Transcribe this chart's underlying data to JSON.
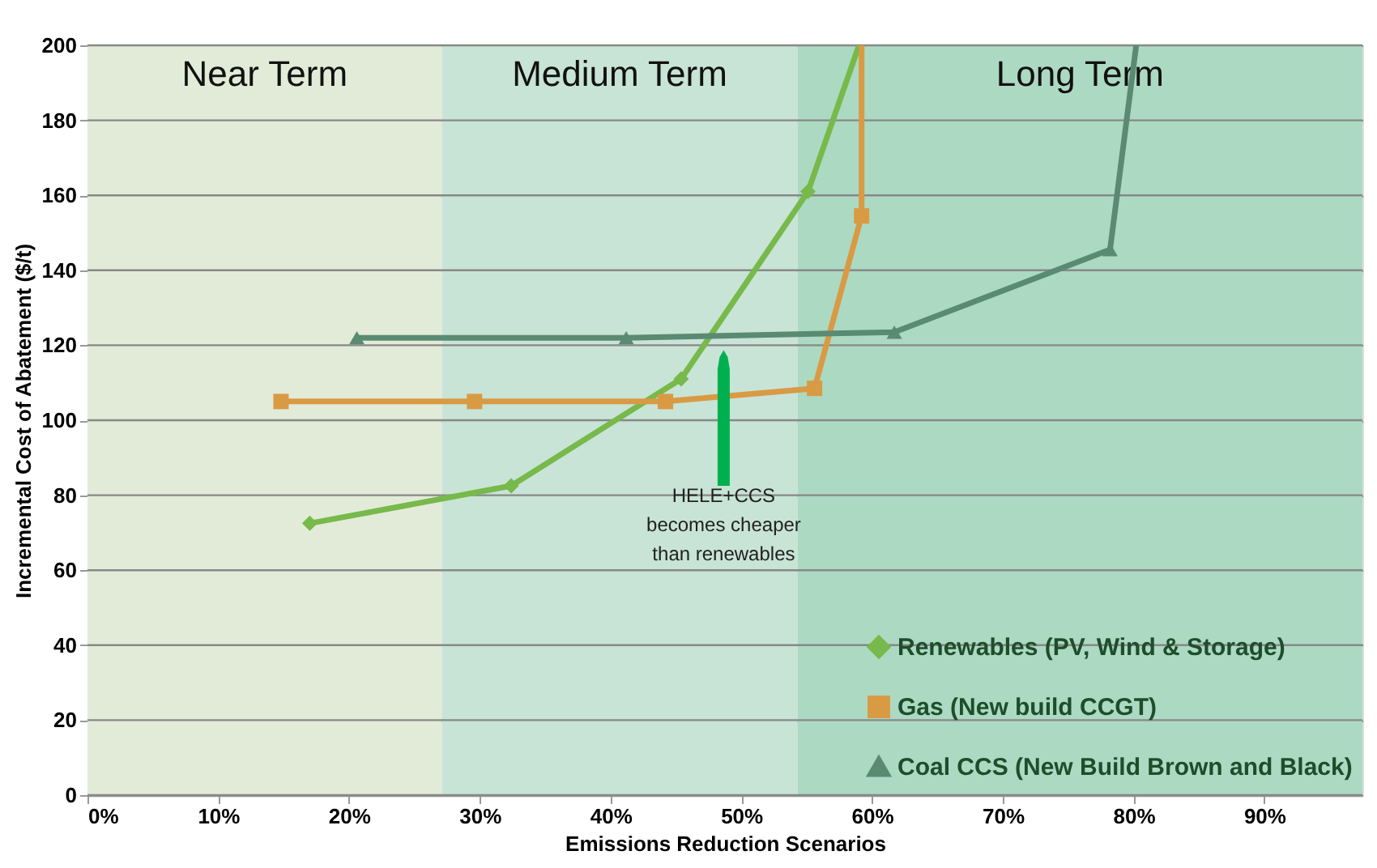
{
  "chart_data": {
    "type": "line",
    "xlabel": "Emissions Reduction Scenarios",
    "ylabel": "Incremental Cost of Abatement ($/t)",
    "xlim": [
      0,
      97.5
    ],
    "xticks": [
      {
        "value": 0,
        "label": "0%"
      },
      {
        "value": 10,
        "label": "10%"
      },
      {
        "value": 20,
        "label": "20%"
      },
      {
        "value": 30,
        "label": "30%"
      },
      {
        "value": 40,
        "label": "40%"
      },
      {
        "value": 50,
        "label": "50%"
      },
      {
        "value": 60,
        "label": "60%"
      },
      {
        "value": 70,
        "label": "70%"
      },
      {
        "value": 80,
        "label": "80%"
      },
      {
        "value": 90,
        "label": "90%"
      }
    ],
    "ylim": [
      0,
      200
    ],
    "yticks": [
      0,
      20,
      40,
      60,
      80,
      100,
      120,
      140,
      160,
      180,
      200
    ],
    "grid": "y",
    "legend": "bottom right",
    "series": [
      {
        "name": "Renewables (PV, Wind & Storage)",
        "color": "#77b94a",
        "marker": "diamond",
        "x": [
          17.0,
          32.4,
          45.4,
          55.1,
          59.0
        ],
        "values": [
          72.5,
          82.5,
          111,
          161,
          200
        ]
      },
      {
        "name": "Gas (New build CCGT)",
        "color": "#d99a44",
        "marker": "square",
        "x": [
          14.8,
          29.6,
          44.2,
          55.6,
          59.2,
          59.2
        ],
        "values": [
          105,
          105,
          105,
          108.5,
          154.5,
          200
        ]
      },
      {
        "name": "Coal CCS (New Build Brown and Black)",
        "color": "#5b8a72",
        "marker": "triangle",
        "x": [
          20.6,
          41.2,
          61.7,
          78.2,
          80.2
        ],
        "values": [
          122,
          122,
          123.5,
          145.5,
          200
        ]
      }
    ],
    "bands": [
      {
        "axis": "x",
        "from": 0,
        "to": 27.1,
        "label": "Near Term",
        "color": "#e2ebd8"
      },
      {
        "axis": "x",
        "from": 27.1,
        "to": 54.3,
        "label": "Medium Term",
        "color": "#c8e4d6"
      },
      {
        "axis": "x",
        "from": 54.3,
        "to": 97.5,
        "label": "Long Term",
        "color": "#acd9c2"
      }
    ],
    "annotations": [
      "HELE+CCS\nbecomes cheaper\nthan renewables"
    ]
  }
}
